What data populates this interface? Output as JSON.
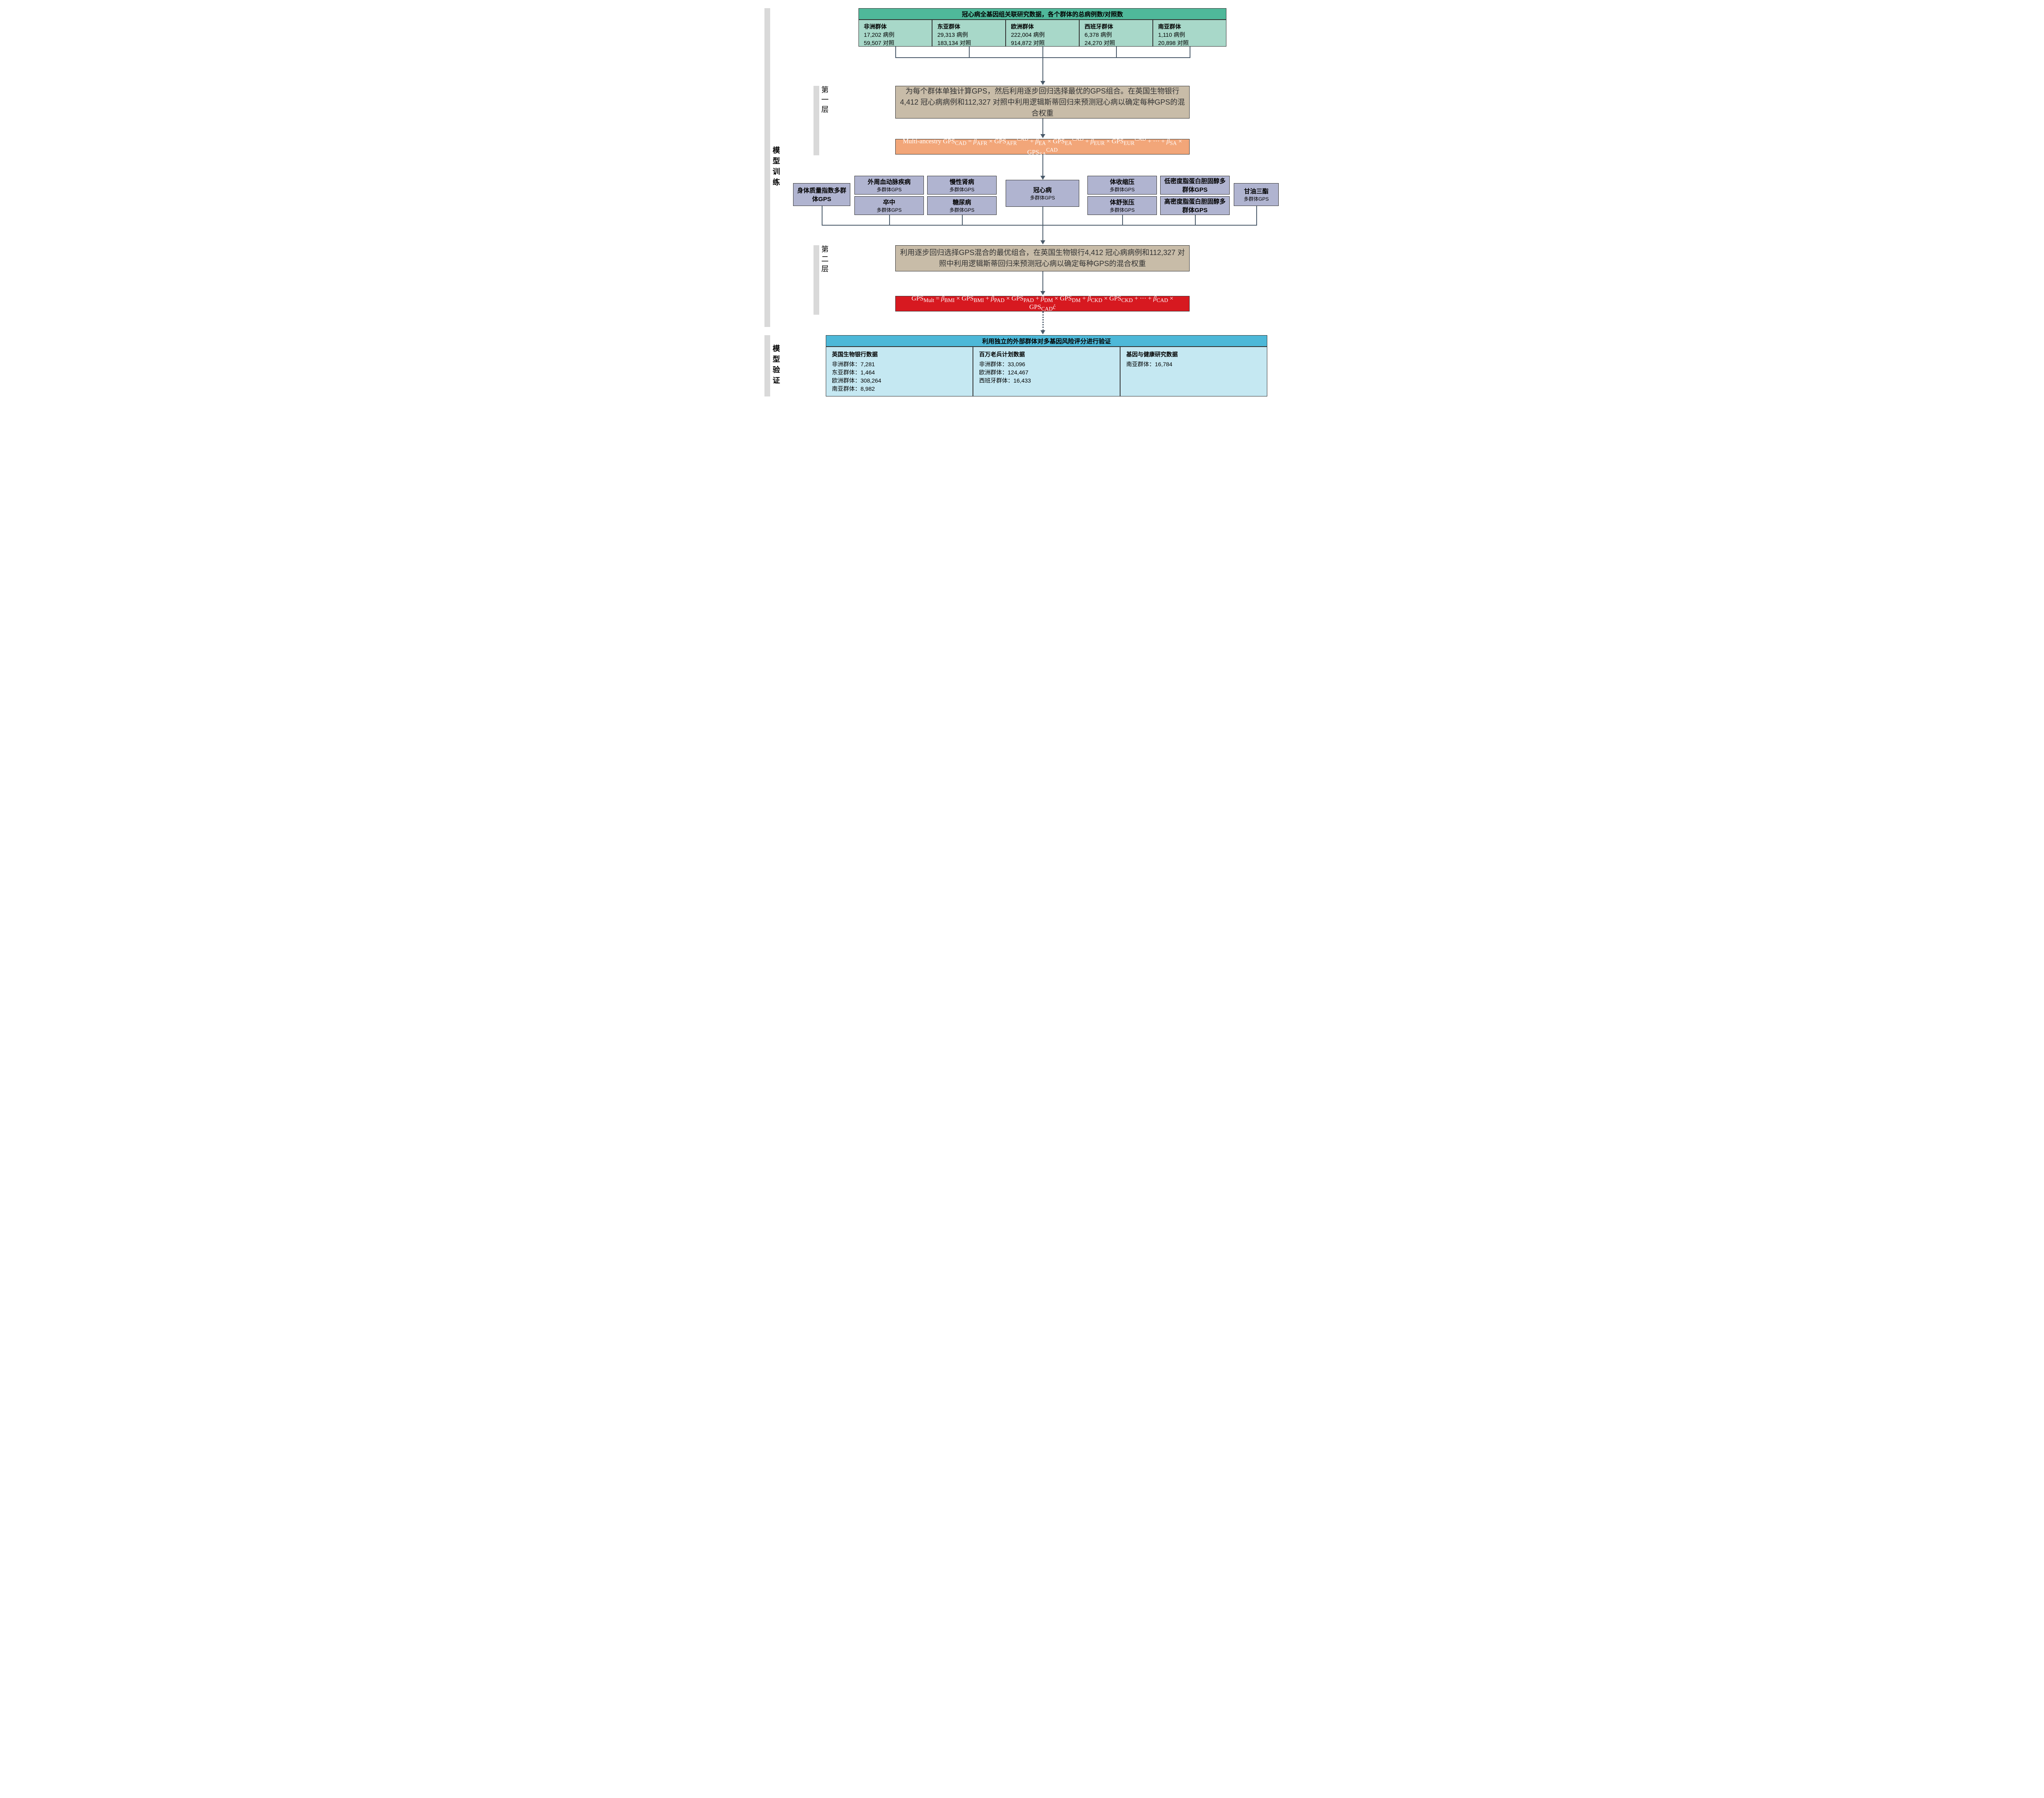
{
  "sideLabels": {
    "training": "模型训练",
    "validation": "模型验证",
    "layer1": "第一层",
    "layer2": "第二层"
  },
  "gwasPanel": {
    "header": "冠心病全基因组关联研究数据，各个群体的总病例数/对照数",
    "populations": [
      {
        "name": "非洲群体",
        "cases": "17,202 病例",
        "controls": "59,507 对照"
      },
      {
        "name": "东亚群体",
        "cases": "29,313 病例",
        "controls": "183,134 对照"
      },
      {
        "name": "欧洲群体",
        "cases": "222,004 病例",
        "controls": "914,872 对照"
      },
      {
        "name": "西班牙群体",
        "cases": "6,378 病例",
        "controls": "24,270 对照"
      },
      {
        "name": "南亚群体",
        "cases": "1,110 病例",
        "controls": "20,898 对照"
      }
    ]
  },
  "layer1": {
    "description": "为每个群体单独计算GPS，然后利用逐步回归选择最优的GPS组合。在英国生物银行4,412 冠心病病例和112,327 对照中利用逻辑斯蒂回归来预测冠心病以确定每种GPS的混合权重",
    "formula_prefix": "Multi-ancestry GPS",
    "formula_parts": [
      "AFR",
      "EA",
      "EUR",
      "SA"
    ]
  },
  "gpsBoxes": {
    "left_single": {
      "title": "身体质量指数多群体GPS"
    },
    "left_top": [
      {
        "title": "外周血动脉疾病",
        "sub": "多群体GPS"
      },
      {
        "title": "慢性肾病",
        "sub": "多群体GPS"
      }
    ],
    "left_bottom": [
      {
        "title": "卒中",
        "sub": "多群体GPS"
      },
      {
        "title": "糖尿病",
        "sub": "多群体GPS"
      }
    ],
    "center": {
      "title": "冠心病",
      "sub": "多群体GPS"
    },
    "right_top": [
      {
        "title": "体收缩压",
        "sub": "多群体GPS"
      },
      {
        "title": "低密度脂蛋白胆固醇多群体GPS"
      }
    ],
    "right_bottom": [
      {
        "title": "体舒张压",
        "sub": "多群体GPS"
      },
      {
        "title": "高密度脂蛋白胆固醇多群体GPS"
      }
    ],
    "right_single": {
      "title": "甘油三酯",
      "sub": "多群体GPS"
    }
  },
  "layer2": {
    "description": "利用逐步回归选择GPS混合的最优组合，在英国生物银行4,412 冠心病病例和112,327 对照中利用逻辑斯蒂回归来预测冠心病以确定每种GPS的混合权重",
    "formula_parts": [
      "BMI",
      "PAD",
      "DM",
      "CKD",
      "CAD"
    ]
  },
  "validationPanel": {
    "header": "利用独立的外部群体对多基因风险评分进行验证",
    "datasets": [
      {
        "name": "英国生物银行数据",
        "items": [
          "非洲群体：7,281",
          "东亚群体：1,464",
          "欧洲群体：308,264",
          "南亚群体：8,982"
        ]
      },
      {
        "name": "百万老兵计划数据",
        "items": [
          "非洲群体：33,096",
          "欧洲群体：124,467",
          "西班牙群体：16,433"
        ]
      },
      {
        "name": "基因与健康研究数据",
        "items": [
          "南亚群体：16,784"
        ]
      }
    ]
  },
  "colors": {
    "greenHeader": "#4fb89a",
    "greenCell": "#a8d8c9",
    "beige": "#c8bca8",
    "peach": "#f2a679",
    "lavender": "#b0b4d0",
    "red": "#d71920",
    "cyanHeader": "#4db8d8",
    "cyanCell": "#c5e8f2",
    "arrow": "#4a5a6a",
    "sidebar": "#d9d9d9"
  },
  "layout": {
    "totalHeight": 960,
    "trainingBarTop": 0,
    "trainingBarHeight": 780,
    "validationBarTop": 800,
    "validationBarHeight": 150
  }
}
